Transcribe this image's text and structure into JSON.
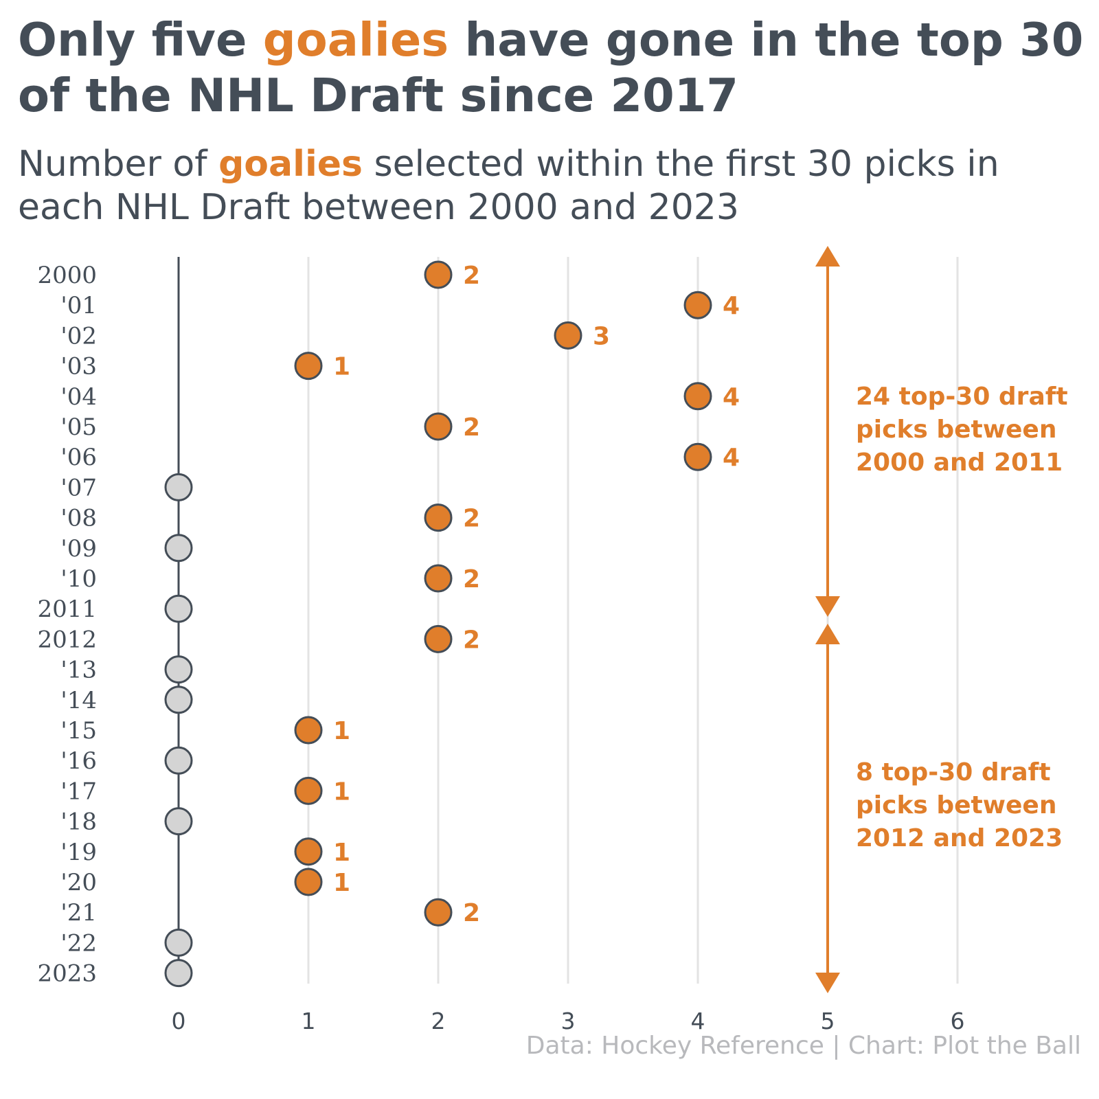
{
  "title": {
    "before": "Only five ",
    "highlight": "goalies",
    "after": " have gone in the top 30 of the NHL Draft since 2017"
  },
  "subtitle": {
    "before": "Number of ",
    "highlight": "goalies",
    "after": " selected within the first 30 picks in each NHL Draft between 2000 and 2023"
  },
  "credit": "Data: Hockey Reference | Chart: Plot the Ball",
  "colors": {
    "accent": "#e07e2b",
    "text": "#444d57",
    "zero_fill": "#d4d4d4",
    "grid": "#e3e3e3",
    "credit": "#b8b9bc"
  },
  "chart_data": {
    "type": "scatter",
    "orientation": "horizontal dot plot",
    "years": [
      "2000",
      "'01",
      "'02",
      "'03",
      "'04",
      "'05",
      "'06",
      "'07",
      "'08",
      "'09",
      "'10",
      "2011",
      "2012",
      "'13",
      "'14",
      "'15",
      "'16",
      "'17",
      "'18",
      "'19",
      "'20",
      "'21",
      "'22",
      "2023"
    ],
    "values": [
      2,
      4,
      3,
      1,
      4,
      2,
      4,
      0,
      2,
      0,
      2,
      0,
      2,
      0,
      0,
      1,
      0,
      1,
      0,
      1,
      1,
      2,
      0,
      0
    ],
    "x_ticks": [
      "0",
      "1",
      "2",
      "3",
      "4",
      "5",
      "6"
    ],
    "xlim": [
      0,
      6
    ],
    "grid": true,
    "annotations": [
      {
        "text_lines": [
          "24 top-30 draft",
          "picks between",
          "2000 and 2011"
        ],
        "from_year": "2000",
        "to_year": "2011",
        "x": 5
      },
      {
        "text_lines": [
          "8 top-30 draft",
          "picks between",
          "2012 and 2023"
        ],
        "from_year": "2012",
        "to_year": "2023",
        "x": 5
      }
    ]
  }
}
